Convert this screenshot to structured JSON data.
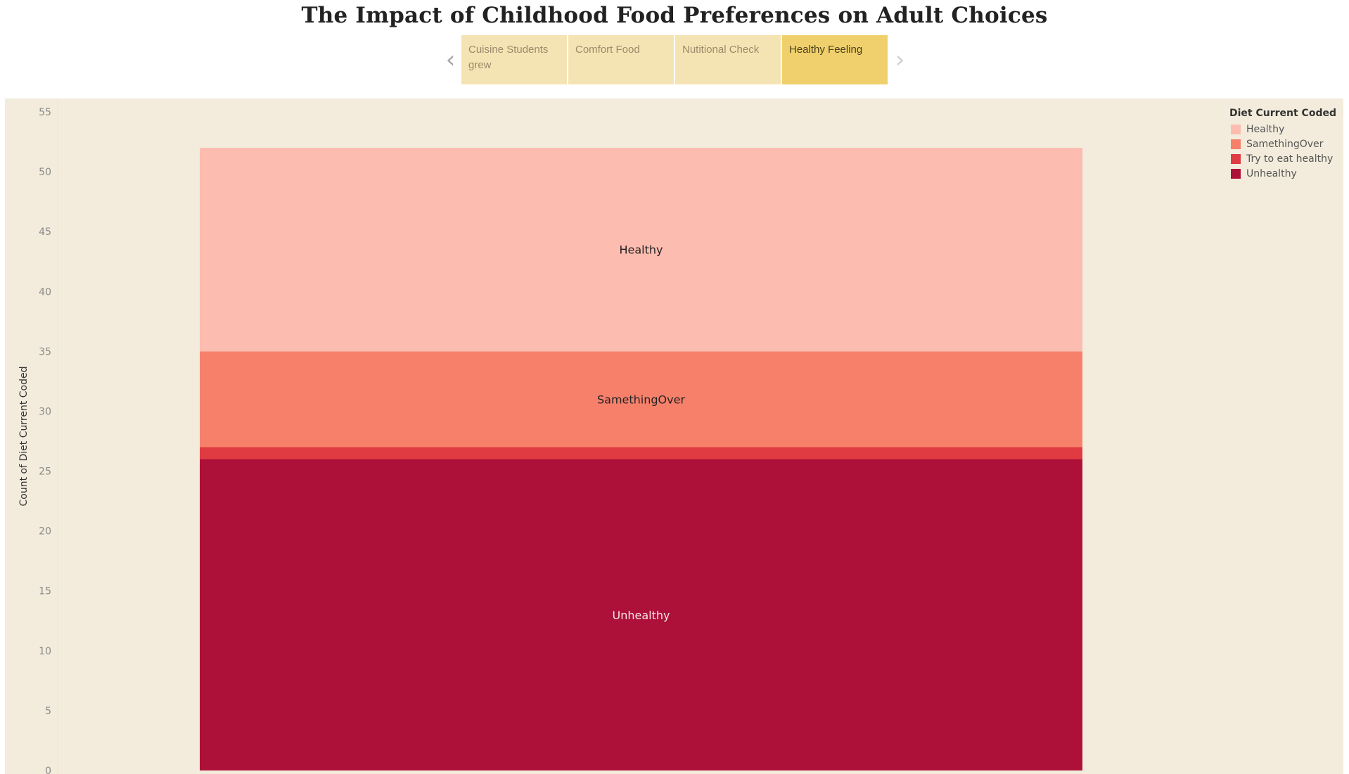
{
  "page": {
    "title": "The Impact of Childhood Food Preferences on Adult Choices"
  },
  "story": {
    "prev_icon": "chevron-left-icon",
    "next_icon": "chevron-right-icon",
    "tabs": [
      {
        "label": "Cuisine Students grew",
        "active": false
      },
      {
        "label": "Comfort Food",
        "active": false
      },
      {
        "label": "Nutitional Check",
        "active": false
      },
      {
        "label": "Healthy Feeling",
        "active": true
      }
    ]
  },
  "legend": {
    "title": "Diet Current Coded"
  },
  "chart_data": {
    "type": "bar",
    "stacked": true,
    "ylabel": "Count of Diet Current Coded",
    "ylim": [
      0,
      55
    ],
    "yticks": [
      0,
      5,
      10,
      15,
      20,
      25,
      30,
      35,
      40,
      45,
      50,
      55
    ],
    "gridlines": false,
    "legend_position": "top-right",
    "series": [
      {
        "name": "Unhealthy",
        "value": 26,
        "color": "#ad1139",
        "label": "Unhealthy",
        "label_color": "#f3e6e6"
      },
      {
        "name": "Try to eat healthy",
        "value": 1,
        "color": "#e03a42",
        "label": "",
        "label_color": "#222222"
      },
      {
        "name": "SamethingOver",
        "value": 8,
        "color": "#f7806b",
        "label": "SamethingOver",
        "label_color": "#222222"
      },
      {
        "name": "Healthy",
        "value": 17,
        "color": "#fdbcb0",
        "label": "Healthy",
        "label_color": "#222222"
      }
    ],
    "legend_order": [
      "Healthy",
      "SamethingOver",
      "Try to eat healthy",
      "Unhealthy"
    ]
  }
}
